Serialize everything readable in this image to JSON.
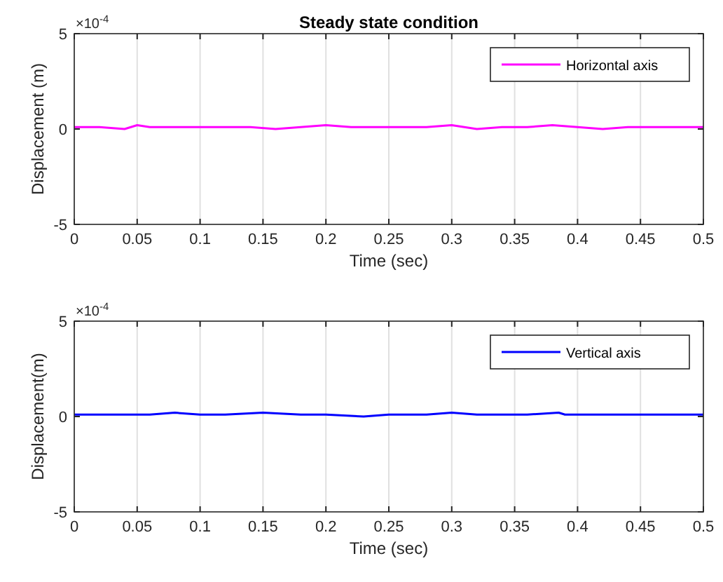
{
  "chart_data": [
    {
      "type": "line",
      "title": "Steady state condition",
      "xlabel": "Time (sec)",
      "ylabel": "Displacement (m)",
      "annotations": [
        "×10$^{-4}$"
      ],
      "grid": "x",
      "legend": "top right",
      "xlim": [
        0,
        0.5
      ],
      "xticks": [
        0,
        0.05,
        0.1,
        0.15,
        0.2,
        0.25,
        0.3,
        0.35,
        0.4,
        0.45,
        0.5
      ],
      "ylim": [
        -5,
        5
      ],
      "yticks": [
        -5,
        0,
        5
      ],
      "x": [
        0,
        0.02,
        0.04,
        0.05,
        0.06,
        0.08,
        0.1,
        0.12,
        0.14,
        0.16,
        0.18,
        0.2,
        0.22,
        0.24,
        0.26,
        0.28,
        0.3,
        0.32,
        0.34,
        0.36,
        0.38,
        0.4,
        0.42,
        0.44,
        0.46,
        0.48,
        0.5
      ],
      "series": [
        {
          "name": "Horizontal axis",
          "color": "#ff00ff",
          "values": [
            0.1,
            0.1,
            0,
            0.2,
            0.1,
            0.1,
            0.1,
            0.1,
            0.1,
            0,
            0.1,
            0.2,
            0.1,
            0.1,
            0.1,
            0.1,
            0.2,
            0,
            0.1,
            0.1,
            0.2,
            0.1,
            0,
            0.1,
            0.1,
            0.1,
            0.1
          ]
        }
      ]
    },
    {
      "type": "line",
      "xlabel": "Time (sec)",
      "ylabel": "Displacement(m)",
      "annotations": [
        "×10$^{-4}$"
      ],
      "grid": "x",
      "legend": "top right",
      "xlim": [
        0,
        0.5
      ],
      "xticks": [
        0,
        0.05,
        0.1,
        0.15,
        0.2,
        0.25,
        0.3,
        0.35,
        0.4,
        0.45,
        0.5
      ],
      "ylim": [
        -5,
        5
      ],
      "yticks": [
        -5,
        0,
        5
      ],
      "x": [
        0,
        0.02,
        0.04,
        0.06,
        0.08,
        0.1,
        0.12,
        0.15,
        0.18,
        0.2,
        0.23,
        0.25,
        0.28,
        0.3,
        0.32,
        0.34,
        0.36,
        0.385,
        0.39,
        0.4,
        0.42,
        0.44,
        0.46,
        0.48,
        0.5
      ],
      "series": [
        {
          "name": "Vertical axis",
          "color": "#0000ff",
          "values": [
            0.1,
            0.1,
            0.1,
            0.1,
            0.2,
            0.1,
            0.1,
            0.2,
            0.1,
            0.1,
            0,
            0.1,
            0.1,
            0.2,
            0.1,
            0.1,
            0.1,
            0.2,
            0.1,
            0.1,
            0.1,
            0.1,
            0.1,
            0.1,
            0.1
          ]
        }
      ]
    }
  ]
}
